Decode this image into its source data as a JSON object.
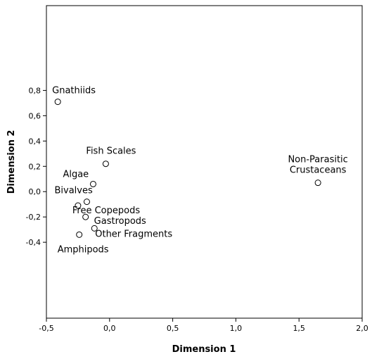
{
  "chart_data": {
    "type": "scatter",
    "xlabel": "Dimension 1",
    "ylabel": "Dimension 2",
    "xlim": [
      -0.5,
      2.0
    ],
    "ylim": [
      -1.0,
      1.47
    ],
    "x_ticks": [
      -0.5,
      0.0,
      0.5,
      1.0,
      1.5,
      2.0
    ],
    "x_tick_labels": [
      "-0,5",
      "0,0",
      "0,5",
      "1,0",
      "1,5",
      "2,0"
    ],
    "y_ticks": [
      0.8,
      0.6,
      0.4,
      0.2,
      0.0,
      -0.2,
      -0.4
    ],
    "y_tick_labels": [
      "0,8",
      "0,6",
      "0,4",
      "0,2",
      "0,0",
      "-0,2",
      "-0,4"
    ],
    "grid": false,
    "legend": "none",
    "points": [
      {
        "label": "Gnathiids",
        "x": -0.41,
        "y": 0.71
      },
      {
        "label": "Fish Scales",
        "x": -0.03,
        "y": 0.22
      },
      {
        "label": "Algae",
        "x": -0.13,
        "y": 0.06
      },
      {
        "label": "Bivalves",
        "x": -0.18,
        "y": -0.08
      },
      {
        "label": "Free Copepods",
        "x": -0.25,
        "y": -0.11
      },
      {
        "label": "Gastropods",
        "x": -0.19,
        "y": -0.2
      },
      {
        "label": "Other Fragments",
        "x": -0.12,
        "y": -0.29
      },
      {
        "label": "Amphipods",
        "x": -0.24,
        "y": -0.34
      },
      {
        "label": "Non-Parasitic Crustaceans",
        "x": 1.65,
        "y": 0.07
      }
    ]
  }
}
